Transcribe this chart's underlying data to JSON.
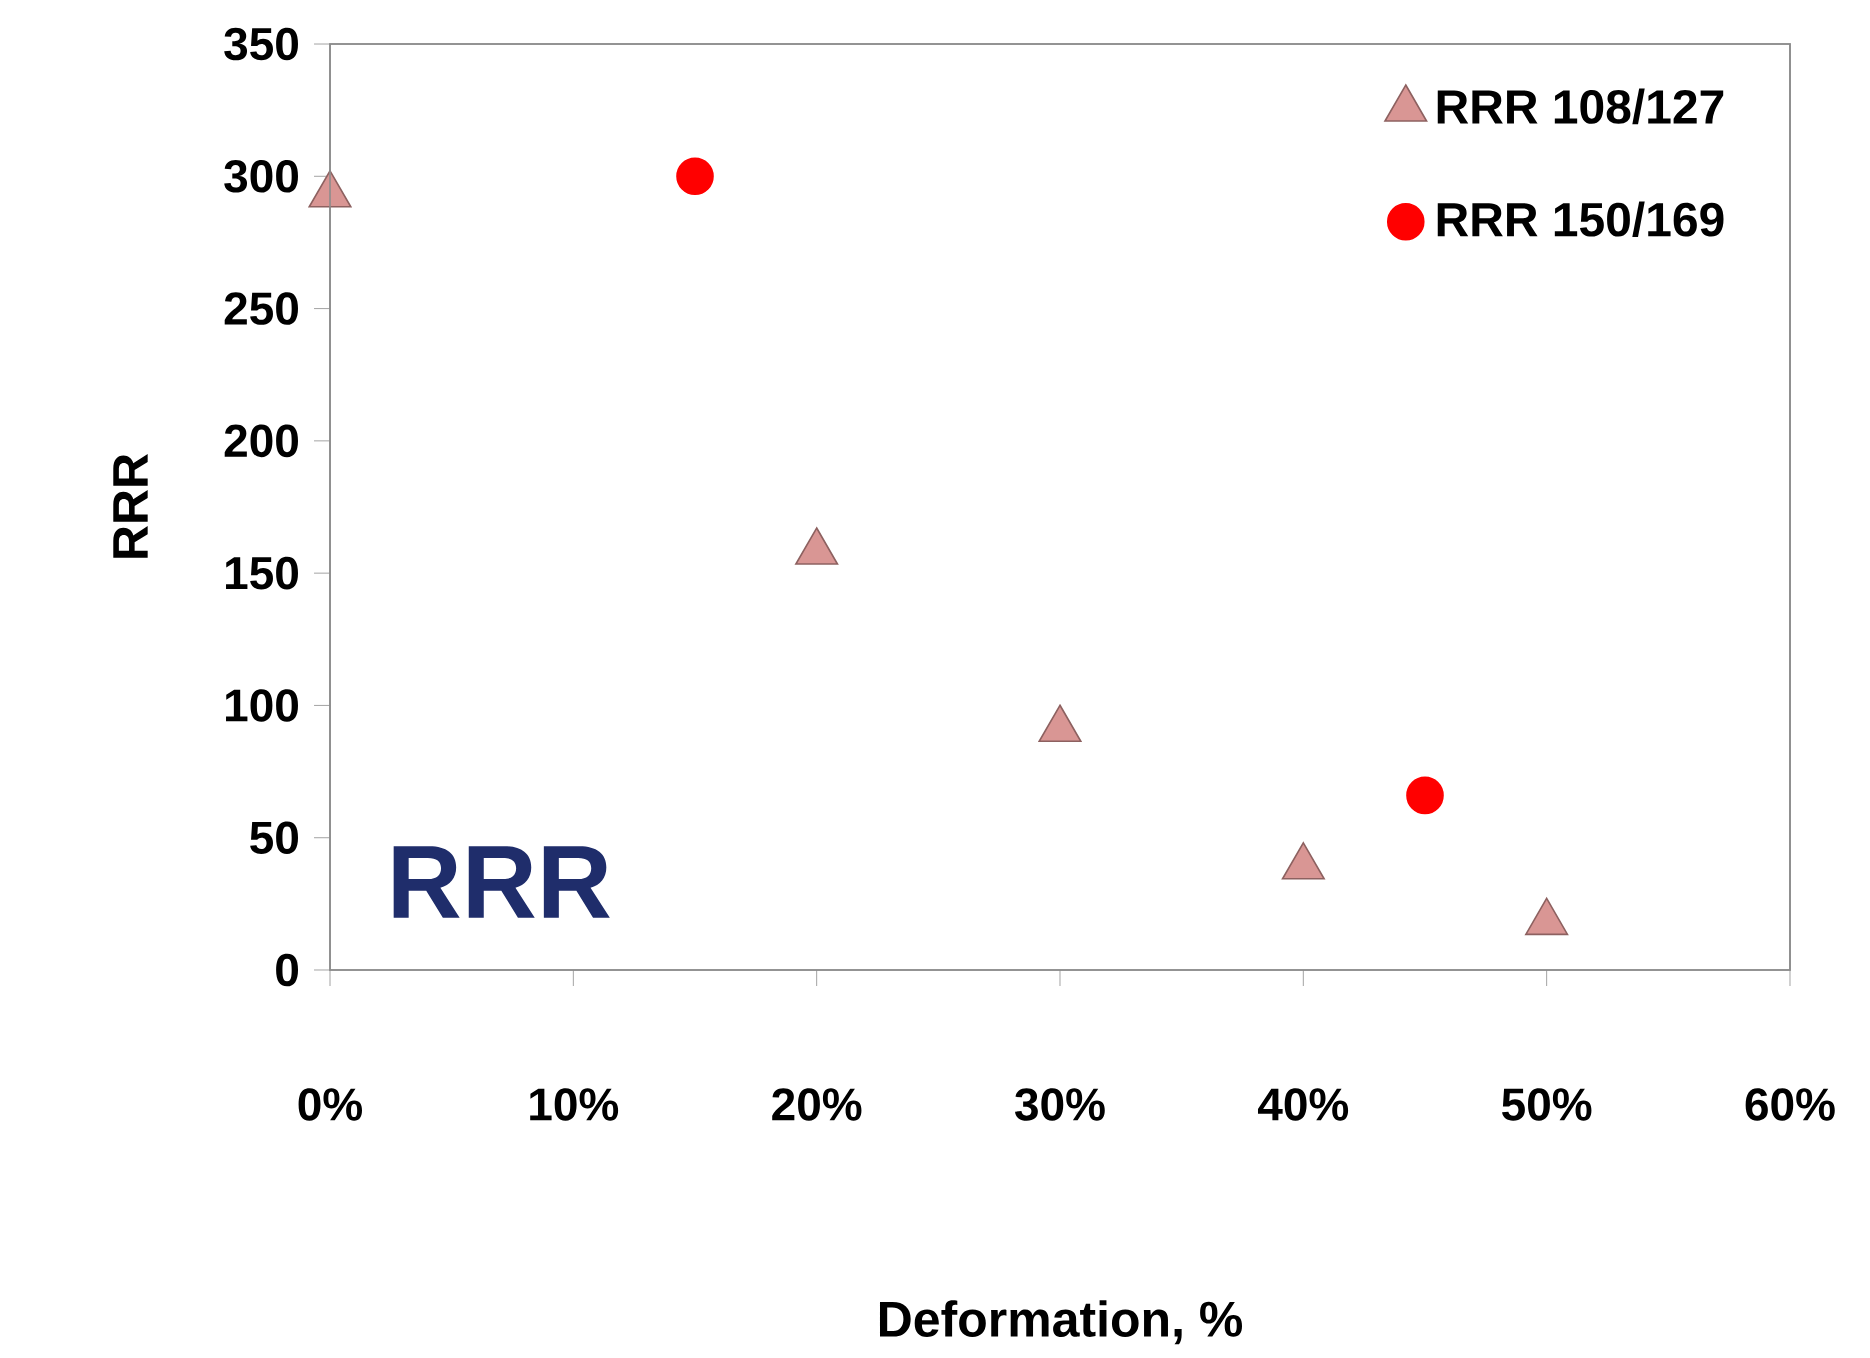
{
  "chart_data": {
    "type": "scatter",
    "xlabel": "Deformation, %",
    "ylabel": "RRR",
    "xlim": [
      0,
      60
    ],
    "ylim": [
      0,
      350
    ],
    "xticks": [
      {
        "value": 0,
        "label": "0%"
      },
      {
        "value": 10,
        "label": "10%"
      },
      {
        "value": 20,
        "label": "20%"
      },
      {
        "value": 30,
        "label": "30%"
      },
      {
        "value": 40,
        "label": "40%"
      },
      {
        "value": 50,
        "label": "50%"
      },
      {
        "value": 60,
        "label": "60%"
      }
    ],
    "yticks": [
      0,
      50,
      100,
      150,
      200,
      250,
      300,
      350
    ],
    "series": [
      {
        "name": "RRR 108/127",
        "color": "#d99694",
        "marker": "triangle",
        "x": [
          0,
          20,
          30,
          40,
          50
        ],
        "values": [
          293,
          158,
          91,
          39,
          18
        ]
      },
      {
        "name": "RRR 150/169",
        "color": "#ff0000",
        "marker": "circle",
        "x": [
          15,
          45
        ],
        "values": [
          300,
          66
        ]
      }
    ],
    "legend": "top right",
    "grid": false,
    "annotations": [
      "RRR"
    ]
  }
}
